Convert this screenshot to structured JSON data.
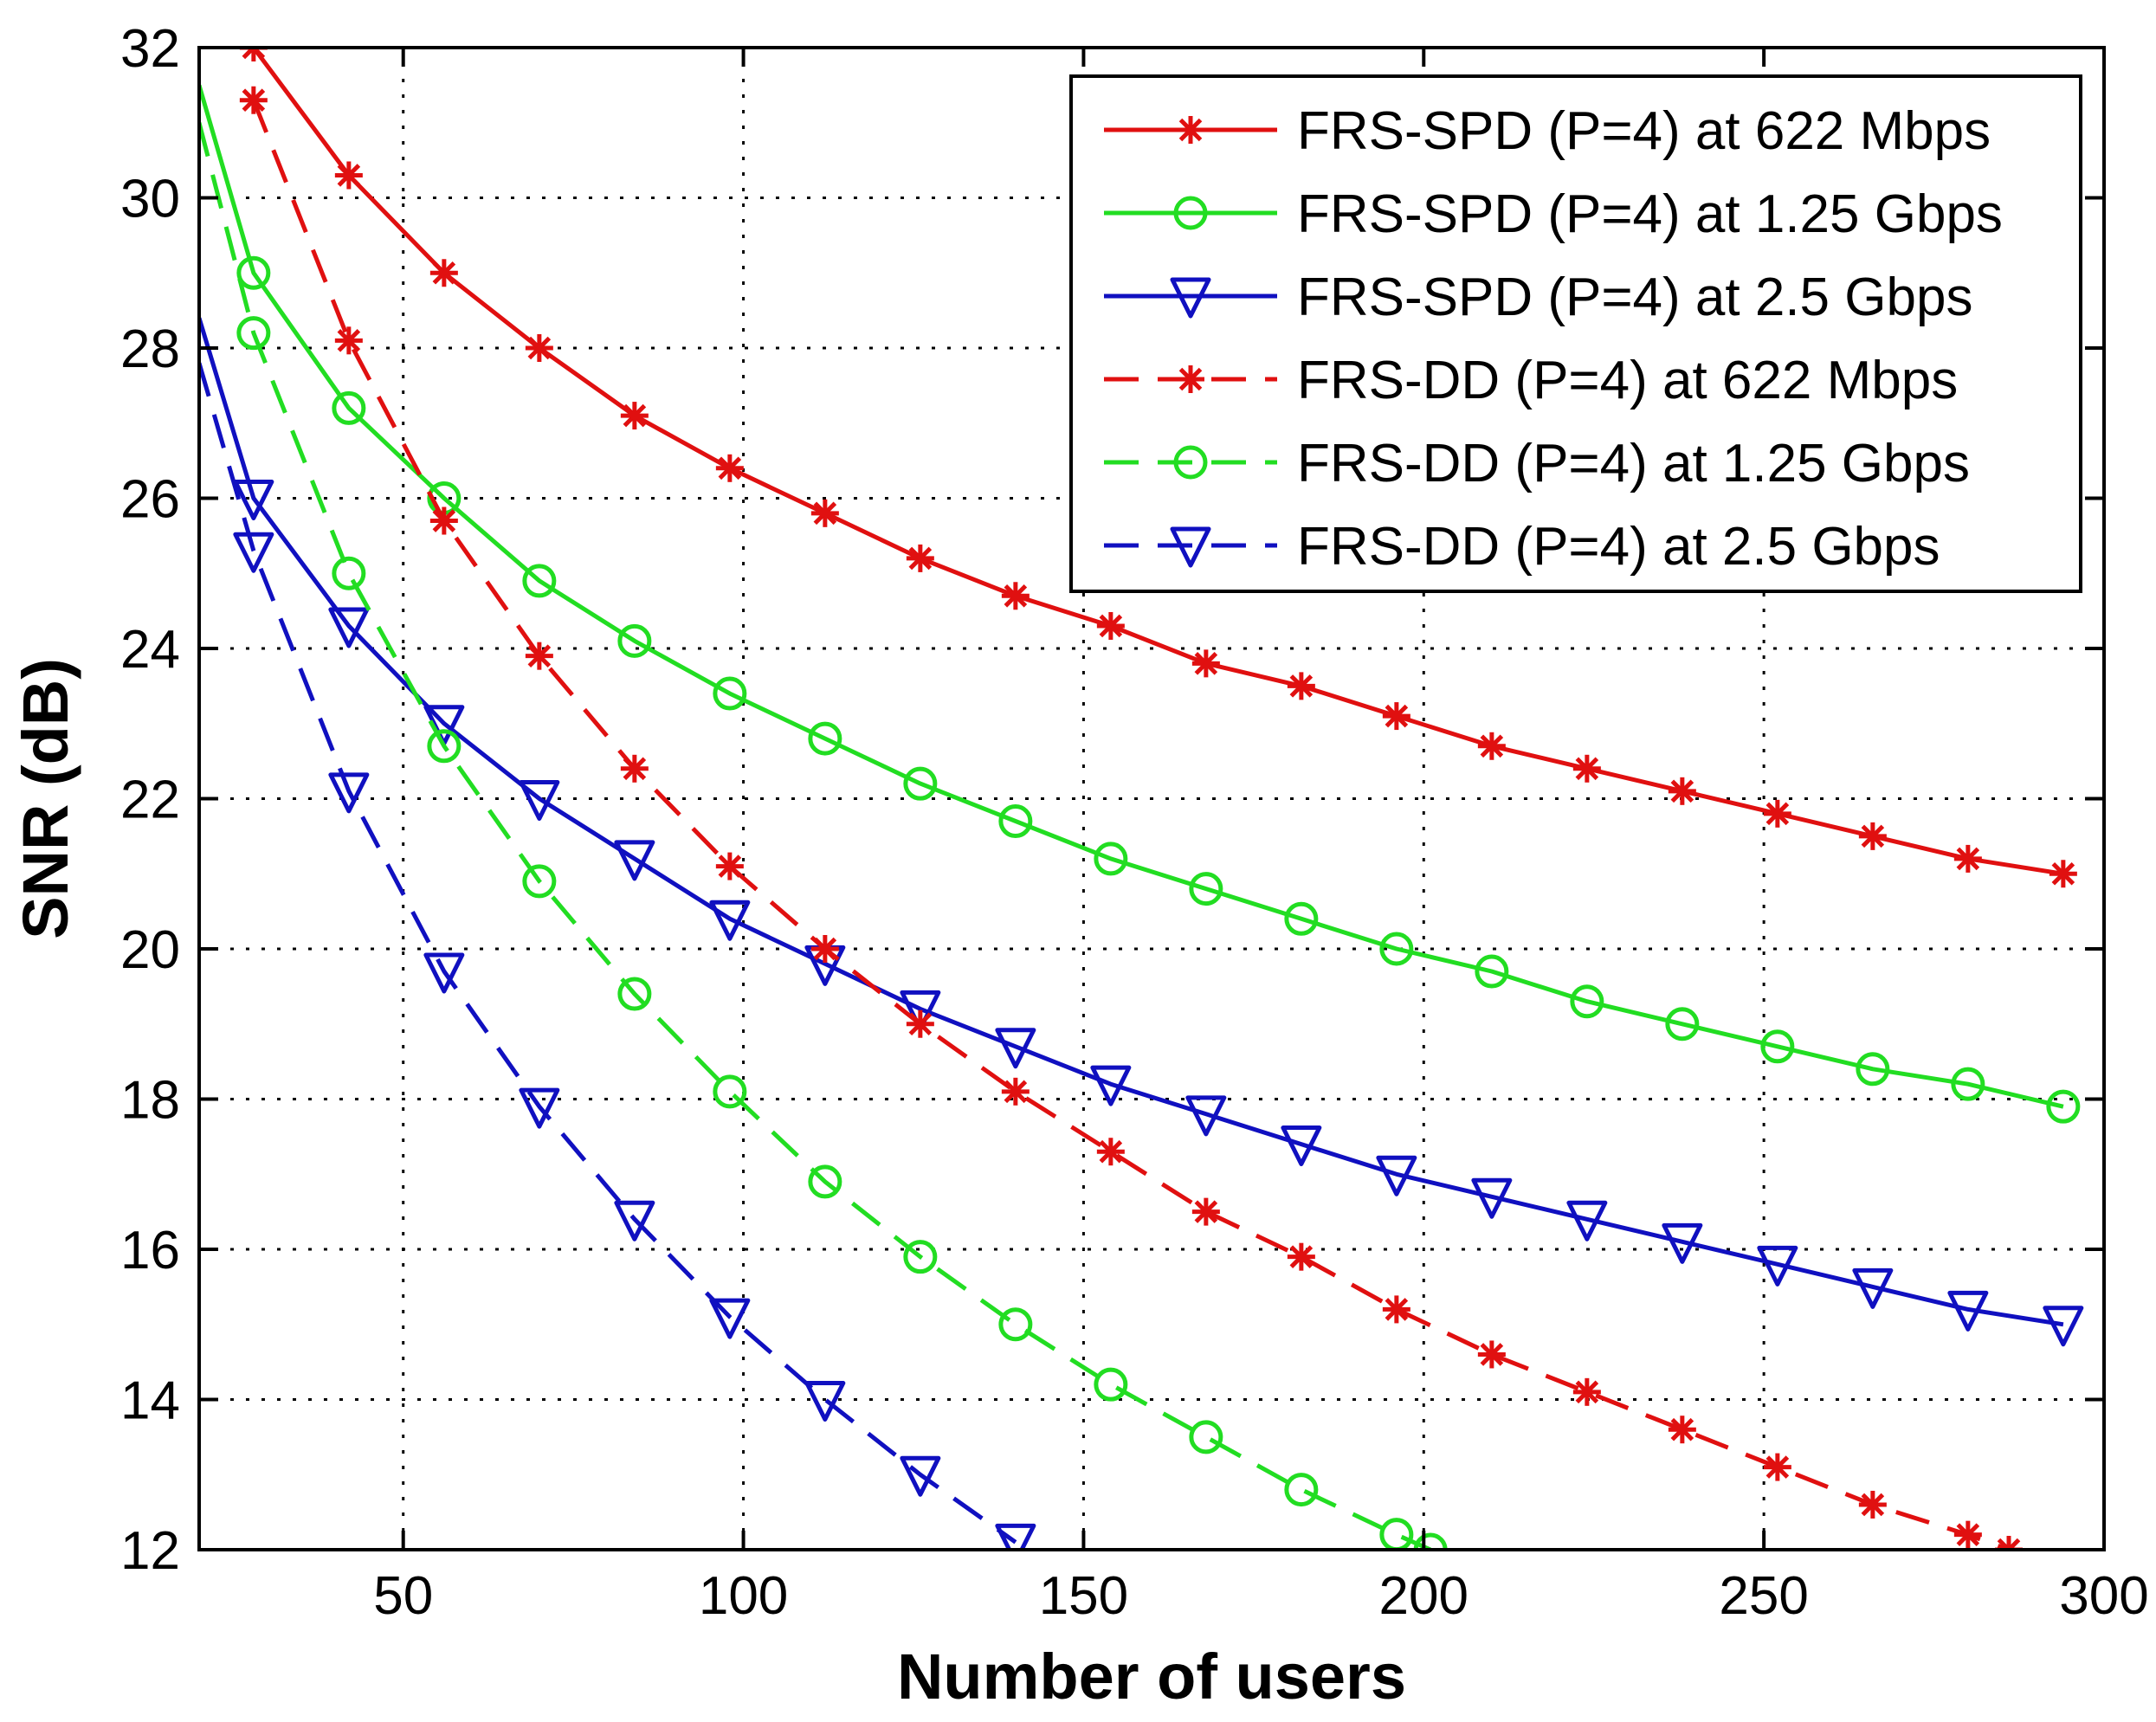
{
  "chart_data": {
    "type": "line",
    "title": "",
    "xlabel": "Number of users",
    "ylabel": "SNR (dB)",
    "xlim": [
      20,
      300
    ],
    "ylim": [
      12,
      32
    ],
    "xticks": [
      50,
      100,
      150,
      200,
      250,
      300
    ],
    "yticks": [
      12,
      14,
      16,
      18,
      20,
      22,
      24,
      26,
      28,
      30,
      32
    ],
    "grid": true,
    "legend_position": "top-right",
    "series": [
      {
        "name": "FRS-SPD (P=4) at 622 Mbps",
        "color": "#e01010",
        "line_style": "solid",
        "marker": "star",
        "x": [
          28,
          42,
          56,
          70,
          84,
          98,
          112,
          126,
          140,
          154,
          168,
          182,
          196,
          210,
          224,
          238,
          252,
          266,
          280,
          294
        ],
        "y": [
          32.0,
          30.3,
          29.0,
          28.0,
          27.1,
          26.4,
          25.8,
          25.2,
          24.7,
          24.3,
          23.8,
          23.5,
          23.1,
          22.7,
          22.4,
          22.1,
          21.8,
          21.5,
          21.2,
          21.0
        ]
      },
      {
        "name": "FRS-SPD (P=4) at 1.25 Gbps",
        "color": "#22dd22",
        "line_style": "solid",
        "marker": "circle",
        "x": [
          20,
          28,
          42,
          56,
          70,
          84,
          98,
          112,
          126,
          140,
          154,
          168,
          182,
          196,
          210,
          224,
          238,
          252,
          266,
          280,
          294
        ],
        "y": [
          31.5,
          29.0,
          27.2,
          26.0,
          24.9,
          24.1,
          23.4,
          22.8,
          22.2,
          21.7,
          21.2,
          20.8,
          20.4,
          20.0,
          19.7,
          19.3,
          19.0,
          18.7,
          18.4,
          18.2,
          17.9
        ]
      },
      {
        "name": "FRS-SPD (P=4) at 2.5 Gbps",
        "color": "#1010c0",
        "line_style": "solid",
        "marker": "triangle-down",
        "x": [
          20,
          28,
          42,
          56,
          70,
          84,
          98,
          112,
          126,
          140,
          154,
          168,
          182,
          196,
          210,
          224,
          238,
          252,
          266,
          280,
          294
        ],
        "y": [
          28.4,
          26.0,
          24.3,
          23.0,
          22.0,
          21.2,
          20.4,
          19.8,
          19.2,
          18.7,
          18.2,
          17.8,
          17.4,
          17.0,
          16.7,
          16.4,
          16.1,
          15.8,
          15.5,
          15.2,
          15.0
        ]
      },
      {
        "name": "FRS-DD (P=4) at 622 Mbps",
        "color": "#e01010",
        "line_style": "dashed",
        "marker": "star",
        "x": [
          28,
          42,
          56,
          70,
          84,
          98,
          112,
          126,
          140,
          154,
          168,
          182,
          196,
          210,
          224,
          238,
          252,
          266,
          280,
          286
        ],
        "y": [
          31.3,
          28.1,
          25.7,
          23.9,
          22.4,
          21.1,
          20.0,
          19.0,
          18.1,
          17.3,
          16.5,
          15.9,
          15.2,
          14.6,
          14.1,
          13.6,
          13.1,
          12.6,
          12.2,
          12.0
        ]
      },
      {
        "name": "FRS-DD (P=4) at 1.25 Gbps",
        "color": "#22dd22",
        "line_style": "dashed",
        "marker": "circle",
        "x": [
          20,
          28,
          42,
          56,
          70,
          84,
          98,
          112,
          126,
          140,
          154,
          168,
          182,
          196,
          201
        ],
        "y": [
          31.0,
          28.2,
          25.0,
          22.7,
          20.9,
          19.4,
          18.1,
          16.9,
          15.9,
          15.0,
          14.2,
          13.5,
          12.8,
          12.2,
          12.0
        ]
      },
      {
        "name": "FRS-DD (P=4) at 2.5 Gbps",
        "color": "#1010c0",
        "line_style": "dashed",
        "marker": "triangle-down",
        "x": [
          20,
          28,
          42,
          56,
          70,
          84,
          98,
          112,
          126,
          140
        ],
        "y": [
          27.8,
          25.3,
          22.1,
          19.7,
          17.9,
          16.4,
          15.1,
          14.0,
          13.0,
          12.1
        ]
      }
    ]
  }
}
